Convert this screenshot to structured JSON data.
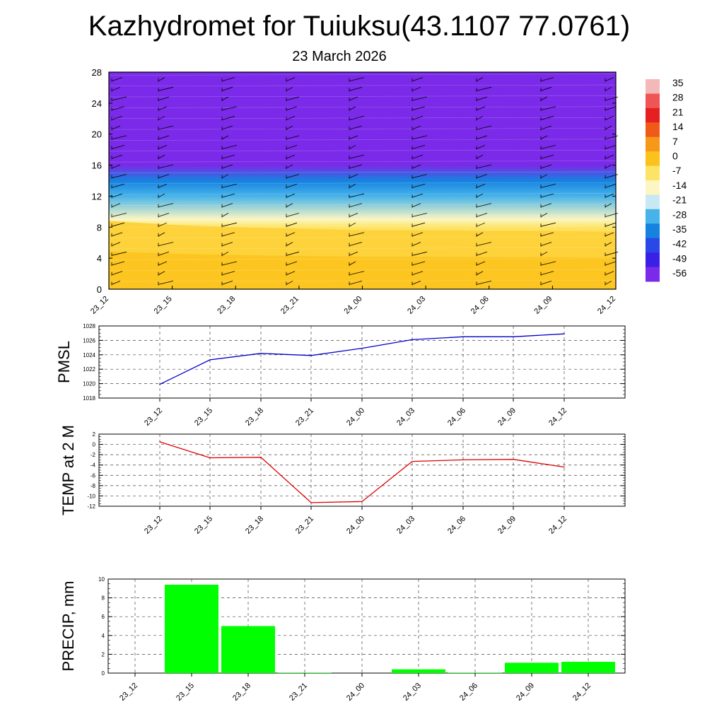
{
  "header": {
    "title": "Kazhydromet for Tuiuksu(43.1107 77.0761)",
    "date": "23 March 2026"
  },
  "chart_data": [
    {
      "type": "heatmap",
      "name": "temperature-profile",
      "title": "",
      "xlabel": "",
      "ylabel": "",
      "categories": [
        "23_12",
        "23_15",
        "23_18",
        "23_21",
        "24_00",
        "24_03",
        "24_06",
        "24_09",
        "24_12"
      ],
      "yticks": [
        0,
        4,
        8,
        12,
        16,
        20,
        24,
        28
      ],
      "ylim": [
        0,
        28
      ],
      "freezing_level": [
        8.8,
        8.3,
        8.0,
        7.8,
        7.6,
        7.6,
        7.5,
        7.5,
        7.4
      ],
      "profile": [
        {
          "z": 0,
          "t": 0
        },
        {
          "z": 4,
          "t": -3
        },
        {
          "z": 8,
          "t": -7
        },
        {
          "z": 9,
          "t": -12
        },
        {
          "z": 12,
          "t": -25
        },
        {
          "z": 14,
          "t": -38
        },
        {
          "z": 16,
          "t": -54
        },
        {
          "z": 18,
          "t": -60
        },
        {
          "z": 20,
          "t": -63
        },
        {
          "z": 22,
          "t": -58
        },
        {
          "z": 24,
          "t": -56
        },
        {
          "z": 28,
          "t": -57
        }
      ],
      "colorbar": {
        "labels": [
          "35",
          "28",
          "21",
          "14",
          "7",
          "0",
          "-7",
          "-14",
          "-21",
          "-28",
          "-35",
          "-42",
          "-49",
          "-56"
        ],
        "colors": [
          "#f4b8b8",
          "#ef5555",
          "#e62020",
          "#f05a18",
          "#f7981a",
          "#fbc21c",
          "#fde466",
          "#fdf6c2",
          "#c8e8f4",
          "#46b3ea",
          "#1682e0",
          "#2a47e8",
          "#3a20e6",
          "#7a2ae8"
        ]
      }
    },
    {
      "type": "line",
      "name": "pmsl",
      "ylabel": "PMSL",
      "categories": [
        "23_12",
        "23_15",
        "23_18",
        "23_21",
        "24_00",
        "24_03",
        "24_06",
        "24_09",
        "24_12"
      ],
      "values": [
        1019.9,
        1023.3,
        1024.2,
        1023.9,
        1024.9,
        1026.1,
        1026.5,
        1026.5,
        1026.9
      ],
      "yticks": [
        1018,
        1020,
        1022,
        1024,
        1026,
        1028
      ],
      "ylim": [
        1018,
        1028
      ],
      "color": "#0000cc"
    },
    {
      "type": "line",
      "name": "temp2m",
      "ylabel": "TEMP at 2 M",
      "categories": [
        "23_12",
        "23_15",
        "23_18",
        "23_21",
        "24_00",
        "24_03",
        "24_06",
        "24_09",
        "24_12"
      ],
      "values": [
        0.5,
        -2.6,
        -2.5,
        -11.3,
        -11.1,
        -3.3,
        -3.0,
        -2.9,
        -4.4
      ],
      "yticks": [
        -12,
        -10,
        -8,
        -6,
        -4,
        -2,
        0,
        2
      ],
      "ylim": [
        -12,
        2
      ],
      "color": "#e00000"
    },
    {
      "type": "bar",
      "name": "precip",
      "ylabel": "PRECIP, mm",
      "categories": [
        "23_12",
        "23_15",
        "23_18",
        "23_21",
        "24_00",
        "24_03",
        "24_06",
        "24_09",
        "24_12"
      ],
      "values": [
        0,
        9.4,
        5.0,
        0.05,
        0,
        0.4,
        0.05,
        1.1,
        1.2
      ],
      "yticks": [
        0,
        2,
        4,
        6,
        8,
        10
      ],
      "ylim": [
        0,
        10
      ],
      "color": "#00ff00"
    }
  ]
}
